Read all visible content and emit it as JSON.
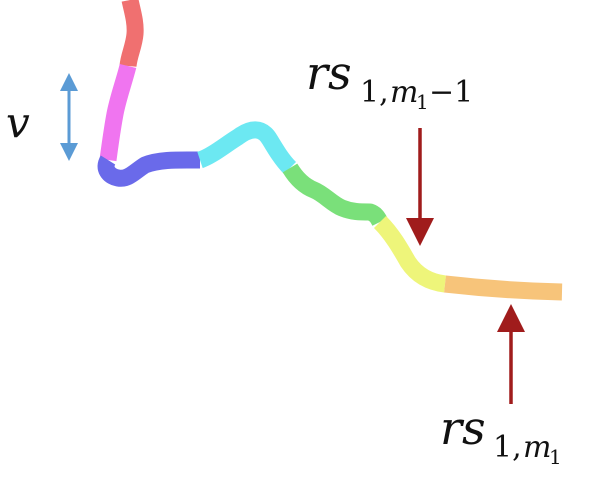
{
  "labels": {
    "v": "v",
    "rs_top_main": "rs",
    "rs_top_sub": "1,",
    "rs_top_m": "m",
    "rs_top_msub": "1",
    "rs_top_tail": "−1",
    "rs_bottom_main": "rs",
    "rs_bottom_sub": "1,",
    "rs_bottom_m": "m",
    "rs_bottom_msub": "1"
  },
  "colors": {
    "segment_red": "#F07070",
    "segment_magenta": "#F075F0",
    "segment_blue": "#6A6AEA",
    "segment_cyan": "#6CE8F2",
    "segment_green": "#7AE07A",
    "segment_yellow": "#EEF57A",
    "segment_orange": "#F7C47A",
    "arrow_dark_red": "#A01C1C",
    "arrow_blue": "#5B9BD5"
  }
}
